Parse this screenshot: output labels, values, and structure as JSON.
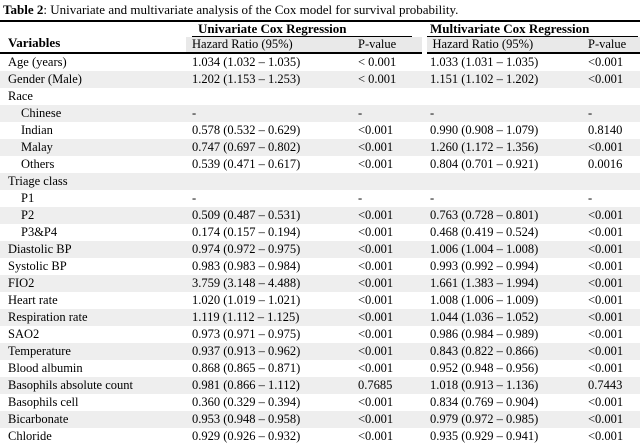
{
  "caption": {
    "bold": "Table 2",
    "rest": ": Univariate and multivariate analysis of the Cox model for survival probability."
  },
  "colors": {
    "stripe": "#eeeeee",
    "subheader_bg": "#e9e9e9",
    "rule": "#000000"
  },
  "table": {
    "variables_header": "Variables",
    "groups": {
      "univariate": "Univariate Cox Regression",
      "multivariate": "Multivariate Cox Regression"
    },
    "subheaders": {
      "uni_hr": "Hazard Ratio (95%)",
      "uni_p": "P-value",
      "multi_hr": "Hazard Ratio (95%)",
      "multi_p": "P-value"
    },
    "rows": [
      {
        "label": "Age (years)",
        "indent": false,
        "cells": [
          "1.034 (1.032 – 1.035)",
          "< 0.001",
          "1.033 (1.031 – 1.035)",
          "<0.001"
        ]
      },
      {
        "label": "Gender (Male)",
        "indent": false,
        "cells": [
          "1.202 (1.153 – 1.253)",
          "< 0.001",
          "1.151 (1.102 – 1.202)",
          "<0.001"
        ]
      },
      {
        "label": "Race",
        "indent": false,
        "cells": [
          "",
          "",
          "",
          ""
        ]
      },
      {
        "label": "Chinese",
        "indent": true,
        "cells": [
          "-",
          "-",
          "-",
          "-"
        ]
      },
      {
        "label": "Indian",
        "indent": true,
        "cells": [
          "0.578 (0.532 – 0.629)",
          "<0.001",
          "0.990 (0.908 – 1.079)",
          "0.8140"
        ]
      },
      {
        "label": "Malay",
        "indent": true,
        "cells": [
          "0.747 (0.697 – 0.802)",
          "<0.001",
          "1.260 (1.172 – 1.356)",
          "<0.001"
        ]
      },
      {
        "label": "Others",
        "indent": true,
        "cells": [
          "0.539 (0.471 – 0.617)",
          "<0.001",
          "0.804 (0.701 – 0.921)",
          "0.0016"
        ]
      },
      {
        "label": "Triage class",
        "indent": false,
        "cells": [
          "",
          "",
          "",
          ""
        ]
      },
      {
        "label": "P1",
        "indent": true,
        "cells": [
          "-",
          "-",
          "-",
          "-"
        ]
      },
      {
        "label": "P2",
        "indent": true,
        "cells": [
          "0.509 (0.487 – 0.531)",
          "<0.001",
          "0.763 (0.728 – 0.801)",
          "<0.001"
        ]
      },
      {
        "label": "P3&P4",
        "indent": true,
        "cells": [
          "0.174 (0.157 – 0.194)",
          "<0.001",
          "0.468 (0.419 – 0.524)",
          "<0.001"
        ]
      },
      {
        "label": "Diastolic BP",
        "indent": false,
        "cells": [
          "0.974 (0.972 – 0.975)",
          "<0.001",
          "1.006 (1.004 – 1.008)",
          "<0.001"
        ]
      },
      {
        "label": "Systolic BP",
        "indent": false,
        "cells": [
          "0.983 (0.983 – 0.984)",
          "<0.001",
          "0.993 (0.992 – 0.994)",
          "<0.001"
        ]
      },
      {
        "label": "FIO2",
        "indent": false,
        "cells": [
          "3.759 (3.148 – 4.488)",
          "<0.001",
          "1.661 (1.383 – 1.994)",
          "<0.001"
        ]
      },
      {
        "label": "Heart rate",
        "indent": false,
        "cells": [
          "1.020 (1.019 – 1.021)",
          "<0.001",
          "1.008 (1.006 – 1.009)",
          "<0.001"
        ]
      },
      {
        "label": "Respiration rate",
        "indent": false,
        "cells": [
          "1.119 (1.112 – 1.125)",
          "<0.001",
          "1.044 (1.036 – 1.052)",
          "<0.001"
        ]
      },
      {
        "label": "SAO2",
        "indent": false,
        "cells": [
          "0.973 (0.971 – 0.975)",
          "<0.001",
          "0.986 (0.984 – 0.989)",
          "<0.001"
        ]
      },
      {
        "label": "Temperature",
        "indent": false,
        "cells": [
          "0.937 (0.913 – 0.962)",
          "<0.001",
          "0.843 (0.822 – 0.866)",
          "<0.001"
        ]
      },
      {
        "label": "Blood albumin",
        "indent": false,
        "cells": [
          "0.868 (0.865 – 0.871)",
          "<0.001",
          "0.952 (0.948 – 0.956)",
          "<0.001"
        ]
      },
      {
        "label": "Basophils absolute count",
        "indent": false,
        "cells": [
          "0.981 (0.866 – 1.112)",
          "0.7685",
          "1.018 (0.913 – 1.136)",
          "0.7443"
        ]
      },
      {
        "label": "Basophils cell",
        "indent": false,
        "cells": [
          "0.360 (0.329 – 0.394)",
          "<0.001",
          "0.834 (0.769 – 0.904)",
          "<0.001"
        ]
      },
      {
        "label": "Bicarbonate",
        "indent": false,
        "cells": [
          "0.953 (0.948 – 0.958)",
          "<0.001",
          "0.979 (0.972 – 0.985)",
          "<0.001"
        ]
      },
      {
        "label": "Chloride",
        "indent": false,
        "cells": [
          "0.929 (0.926 – 0.932)",
          "<0.001",
          "0.935 (0.929 – 0.941)",
          "<0.001"
        ]
      }
    ]
  }
}
